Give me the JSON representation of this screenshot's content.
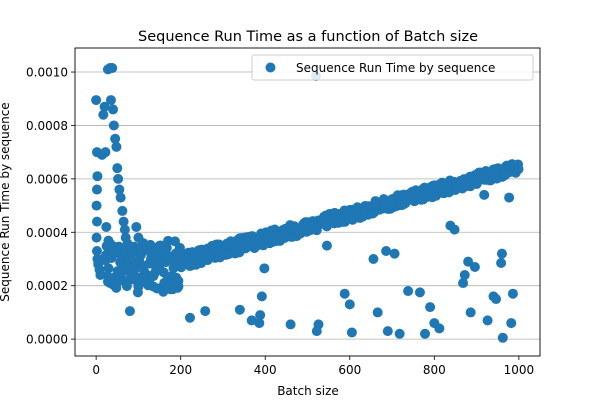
{
  "chart_data": {
    "type": "scatter",
    "title": "Sequence Run Time as a function of Batch size",
    "xlabel": "Batch size",
    "ylabel": "Sequence Run Time by sequence",
    "xlim": [
      -50,
      1050
    ],
    "ylim": [
      -6.32e-05,
      0.00109
    ],
    "xticks": [
      0,
      200,
      400,
      600,
      800,
      1000
    ],
    "yticks": [
      0.0,
      0.0002,
      0.0004,
      0.0006,
      0.0008,
      0.001
    ],
    "ytick_labels": [
      "0.0000",
      "0.0002",
      "0.0004",
      "0.0006",
      "0.0008",
      "0.0010"
    ],
    "grid": "horizontal",
    "legend_position": "top-right",
    "colors": {
      "series": "#1f77b4",
      "grid": "#b0b0b0"
    },
    "series": [
      {
        "name": "Sequence Run Time by sequence",
        "marker": "circle",
        "trend": {
          "x_start": 20,
          "x_end": 1000,
          "y_low_start": 0.00018,
          "y_low_end": 0.000625,
          "y_high_start": 0.00024,
          "y_high_end": 0.000665
        },
        "points": [
          [
            0,
            0.000895
          ],
          [
            2,
            0.0007
          ],
          [
            3,
            0.00061
          ],
          [
            2,
            0.00056
          ],
          [
            1,
            0.0005
          ],
          [
            2,
            0.00044
          ],
          [
            1,
            0.00038
          ],
          [
            2,
            0.00033
          ],
          [
            3,
            0.0003
          ],
          [
            5,
            0.00028
          ],
          [
            8,
            0.00026
          ],
          [
            10,
            0.00024
          ],
          [
            14,
            0.00069
          ],
          [
            17,
            0.00084
          ],
          [
            20,
            0.00087
          ],
          [
            22,
            0.0007
          ],
          [
            24,
            0.00042
          ],
          [
            28,
            0.00101
          ],
          [
            33,
            0.001015
          ],
          [
            38,
            0.001015
          ],
          [
            35,
            0.000895
          ],
          [
            40,
            0.00086
          ],
          [
            42,
            0.0008
          ],
          [
            45,
            0.00075
          ],
          [
            48,
            0.00072
          ],
          [
            50,
            0.00064
          ],
          [
            52,
            0.0006
          ],
          [
            55,
            0.00056
          ],
          [
            58,
            0.00053
          ],
          [
            62,
            0.00048
          ],
          [
            65,
            0.00044
          ],
          [
            68,
            0.00041
          ],
          [
            70,
            0.00038
          ],
          [
            75,
            0.00035
          ],
          [
            78,
            0.0003
          ],
          [
            82,
            0.00026
          ],
          [
            88,
            0.00024
          ],
          [
            95,
            0.00042
          ],
          [
            100,
            0.00038
          ],
          [
            110,
            0.00036
          ],
          [
            120,
            0.00034
          ],
          [
            130,
            0.00032
          ],
          [
            140,
            0.0003
          ],
          [
            150,
            0.00028
          ],
          [
            160,
            0.00025
          ],
          [
            170,
            0.00023
          ],
          [
            80,
            0.000105
          ],
          [
            222,
            8e-05
          ],
          [
            258,
            0.000105
          ],
          [
            340,
            0.00011
          ],
          [
            368,
            7e-05
          ],
          [
            388,
            9e-05
          ],
          [
            386,
            6e-05
          ],
          [
            392,
            0.00016
          ],
          [
            398,
            0.000265
          ],
          [
            460,
            5.5e-05
          ],
          [
            520,
            0.000985
          ],
          [
            526,
            5.5e-05
          ],
          [
            522,
            3e-05
          ],
          [
            546,
            0.00035
          ],
          [
            588,
            0.00017
          ],
          [
            600,
            0.00013
          ],
          [
            605,
            2.5e-05
          ],
          [
            656,
            0.0003
          ],
          [
            666,
            0.0001
          ],
          [
            686,
            0.00033
          ],
          [
            690,
            3e-05
          ],
          [
            706,
            0.00032
          ],
          [
            718,
            2e-05
          ],
          [
            738,
            0.00018
          ],
          [
            766,
            0.000175
          ],
          [
            778,
            2e-05
          ],
          [
            790,
            0.00012
          ],
          [
            800,
            6e-05
          ],
          [
            812,
            4e-05
          ],
          [
            838,
            0.000425
          ],
          [
            848,
            0.00041
          ],
          [
            868,
            0.00021
          ],
          [
            872,
            0.00024
          ],
          [
            886,
            0.0001
          ],
          [
            880,
            0.00029
          ],
          [
            896,
            0.00027
          ],
          [
            926,
            7e-05
          ],
          [
            940,
            0.00016
          ],
          [
            946,
            0.00015
          ],
          [
            958,
            0.000285
          ],
          [
            962,
            5e-06
          ],
          [
            982,
            6e-05
          ],
          [
            986,
            0.00017
          ],
          [
            977,
            0.00053
          ],
          [
            960,
            0.00032
          ],
          [
            918,
            0.00054
          ]
        ]
      }
    ]
  }
}
